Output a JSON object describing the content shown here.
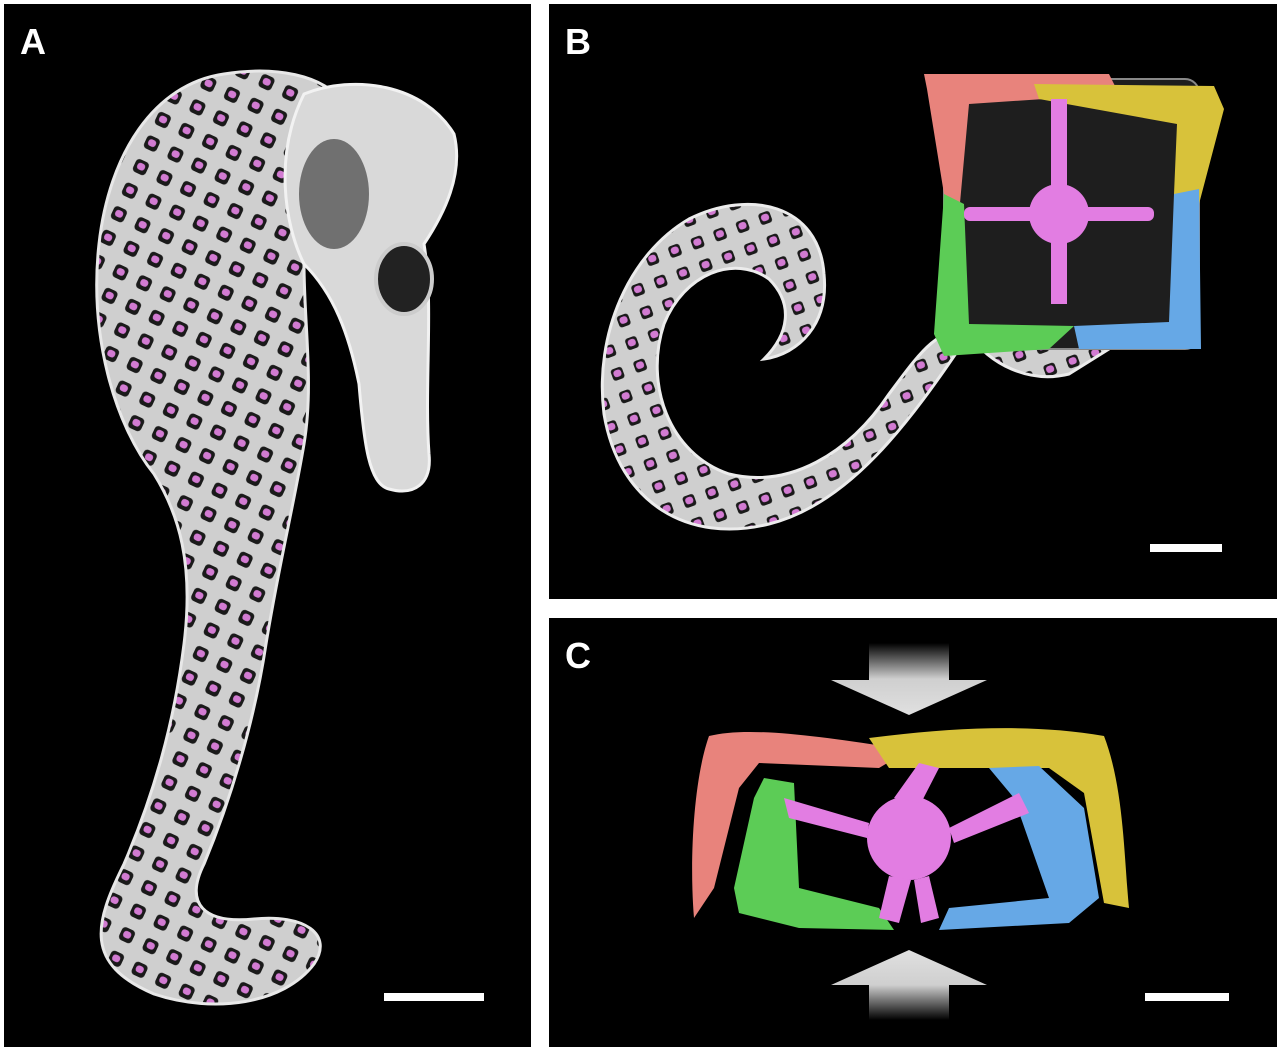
{
  "panels": {
    "a": {
      "label": "A",
      "scale_bar": true
    },
    "b": {
      "label": "B",
      "scale_bar": true
    },
    "c": {
      "label": "C",
      "scale_bar": true
    }
  },
  "colors": {
    "background": "#000000",
    "bone": "#d9d9d9",
    "vertebra": "#e27de2",
    "plate_red": "#e8837c",
    "plate_yellow": "#d8c23a",
    "plate_green": "#5ccc56",
    "plate_blue": "#66a8e6",
    "arrow": "#d0d0d0"
  },
  "icons": {
    "skeleton_a": "seahorse-skeleton",
    "skeleton_b": "coiled-tail-with-square-cross-section",
    "cross_section_c": "compressed-tail-segment",
    "arrows_c": "compression-arrows"
  }
}
